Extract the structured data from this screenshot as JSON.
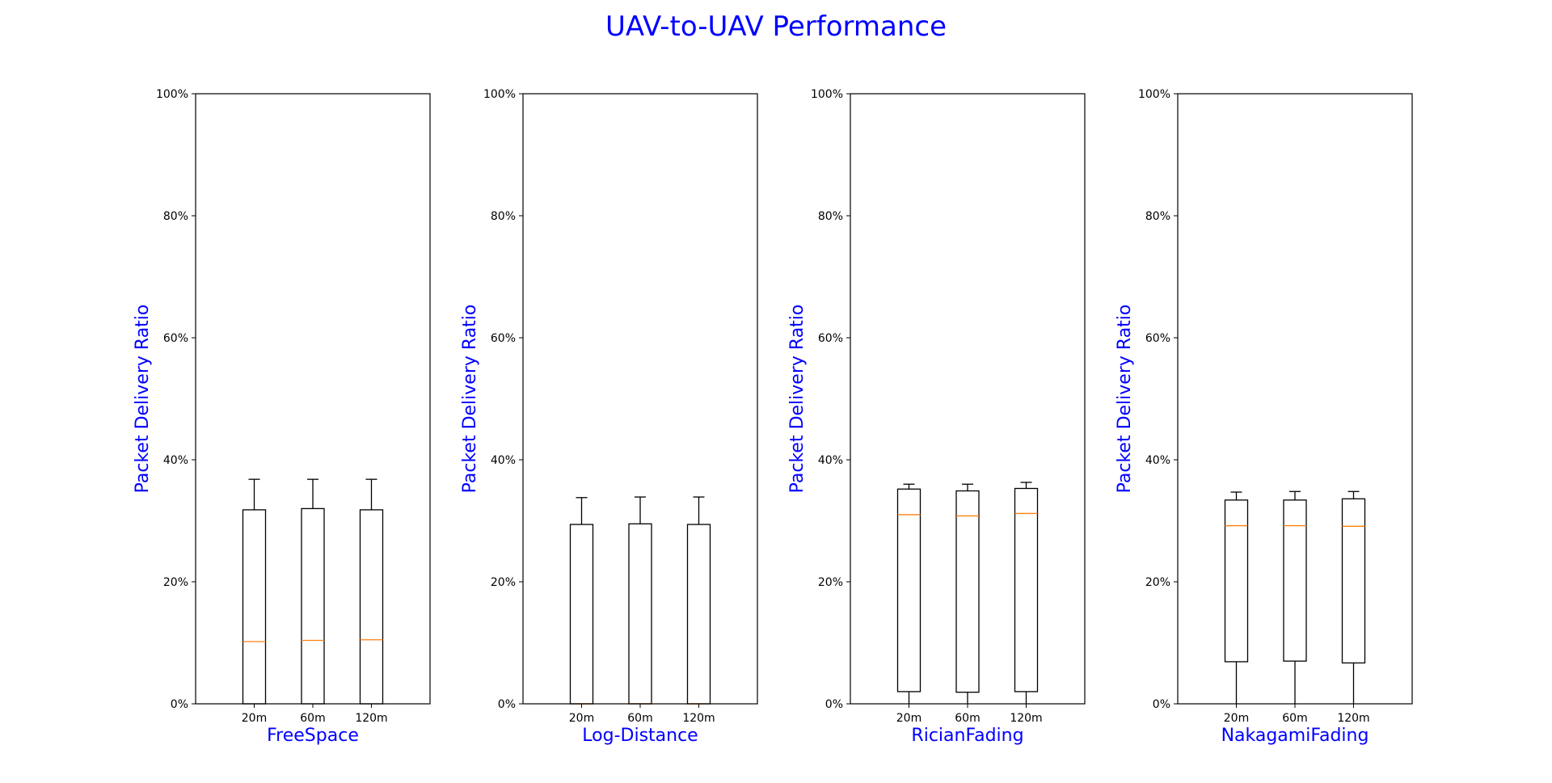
{
  "title": "UAV-to-UAV Performance",
  "title_color": "#0000ff",
  "label_color": "#0000ff",
  "median_color": "#ff7f0e",
  "box_color": "#000000",
  "chart_data": [
    {
      "type": "box",
      "xlabel": "FreeSpace",
      "ylabel": "Packet Delivery Ratio",
      "ylim": [
        0,
        100
      ],
      "yticks": [
        "0%",
        "20%",
        "40%",
        "60%",
        "80%",
        "100%"
      ],
      "categories": [
        "20m",
        "60m",
        "120m"
      ],
      "boxes": [
        {
          "whislo": 0,
          "q1": 0,
          "med": 10.2,
          "q3": 31.8,
          "whishi": 36.8
        },
        {
          "whislo": 0,
          "q1": 0,
          "med": 10.4,
          "q3": 32.0,
          "whishi": 36.8
        },
        {
          "whislo": 0,
          "q1": 0,
          "med": 10.5,
          "q3": 31.8,
          "whishi": 36.8
        }
      ]
    },
    {
      "type": "box",
      "xlabel": "Log-Distance",
      "ylabel": "Packet Delivery Ratio",
      "ylim": [
        0,
        100
      ],
      "yticks": [
        "0%",
        "20%",
        "40%",
        "60%",
        "80%",
        "100%"
      ],
      "categories": [
        "20m",
        "60m",
        "120m"
      ],
      "boxes": [
        {
          "whislo": 0,
          "q1": 0,
          "med": 0,
          "q3": 29.4,
          "whishi": 33.8
        },
        {
          "whislo": 0,
          "q1": 0,
          "med": 0,
          "q3": 29.5,
          "whishi": 33.9
        },
        {
          "whislo": 0,
          "q1": 0,
          "med": 0,
          "q3": 29.4,
          "whishi": 33.9
        }
      ]
    },
    {
      "type": "box",
      "xlabel": "RicianFading",
      "ylabel": "Packet Delivery Ratio",
      "ylim": [
        0,
        100
      ],
      "yticks": [
        "0%",
        "20%",
        "40%",
        "60%",
        "80%",
        "100%"
      ],
      "categories": [
        "20m",
        "60m",
        "120m"
      ],
      "boxes": [
        {
          "whislo": 0,
          "q1": 2.0,
          "med": 31.0,
          "q3": 35.2,
          "whishi": 36.0
        },
        {
          "whislo": 0,
          "q1": 1.9,
          "med": 30.8,
          "q3": 34.9,
          "whishi": 36.0
        },
        {
          "whislo": 0,
          "q1": 2.0,
          "med": 31.2,
          "q3": 35.3,
          "whishi": 36.3
        }
      ]
    },
    {
      "type": "box",
      "xlabel": "NakagamiFading",
      "ylabel": "Packet Delivery Ratio",
      "ylim": [
        0,
        100
      ],
      "yticks": [
        "0%",
        "20%",
        "40%",
        "60%",
        "80%",
        "100%"
      ],
      "categories": [
        "20m",
        "60m",
        "120m"
      ],
      "boxes": [
        {
          "whislo": 0,
          "q1": 6.9,
          "med": 29.2,
          "q3": 33.4,
          "whishi": 34.7
        },
        {
          "whislo": 0,
          "q1": 7.0,
          "med": 29.2,
          "q3": 33.4,
          "whishi": 34.8
        },
        {
          "whislo": 0,
          "q1": 6.7,
          "med": 29.1,
          "q3": 33.6,
          "whishi": 34.8
        }
      ]
    }
  ]
}
